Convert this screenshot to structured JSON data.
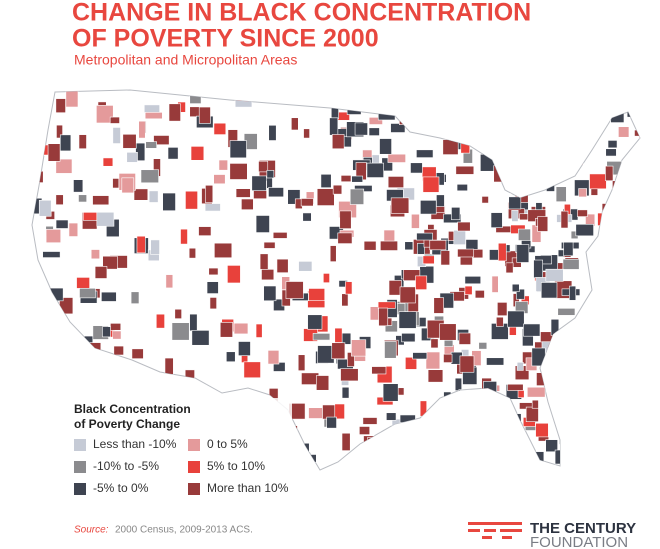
{
  "header": {
    "title_lines": [
      "CHANGE IN BLACK CONCENTRATION",
      "OF POVERTY SINCE 2000"
    ],
    "subtitle": "Metropolitan and Micropolitan Areas"
  },
  "legend": {
    "title_lines": [
      "Black Concentration",
      "of Poverty Change"
    ],
    "items": [
      {
        "label": "Less than -10%",
        "color": "#c6cbd6"
      },
      {
        "label": "-10% to -5%",
        "color": "#8b8b8e"
      },
      {
        "label": "-5% to 0%",
        "color": "#3e4451"
      },
      {
        "label": "0 to 5%",
        "color": "#e49a9b"
      },
      {
        "label": "5% to 10%",
        "color": "#e8413b"
      },
      {
        "label": "More than 10%",
        "color": "#983a3a"
      }
    ]
  },
  "source": {
    "prefix": "Source:",
    "text": "2000 Census, 2009-2013 ACS."
  },
  "logo": {
    "lines": [
      "THE CENTURY",
      "FOUNDATION"
    ]
  }
}
